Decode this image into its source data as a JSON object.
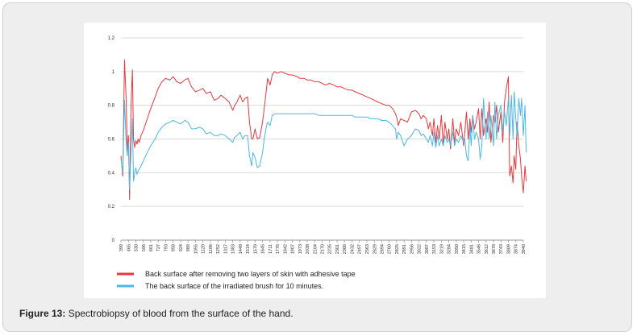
{
  "caption": {
    "label": "Figure 13:",
    "text": "Spectrobiopsy of blood from the surface of the hand."
  },
  "chart_data": {
    "type": "line",
    "title": "",
    "xlabel": "",
    "ylabel": "",
    "ylim": [
      0,
      1.2
    ],
    "yticks": [
      "0",
      "0.2",
      "0.4",
      "0.6",
      "0.8",
      "1",
      "1.2"
    ],
    "grid": true,
    "legend_position": "bottom",
    "x_tick_labels": [
      "399",
      "465",
      "530",
      "596",
      "661",
      "727",
      "793",
      "858",
      "924",
      "989",
      "1055",
      "1120",
      "1186",
      "1252",
      "1317",
      "1383",
      "1448",
      "1514",
      "1579",
      "1645",
      "1711",
      "1776",
      "1842",
      "1907",
      "1973",
      "2038",
      "2104",
      "2170",
      "2235",
      "2301",
      "2366",
      "2432",
      "2497",
      "2563",
      "2629",
      "2694",
      "2760",
      "2825",
      "2891",
      "2956",
      "3022",
      "3087",
      "3153",
      "3219",
      "3284",
      "3350",
      "3415",
      "3481",
      "3546",
      "3612",
      "3678",
      "3743",
      "3809",
      "3874",
      "3940"
    ],
    "series": [
      {
        "name": "Back surface after removing two layers of skin with adhesive tape",
        "color": "#e8383d",
        "x": [
          399,
          415,
          430,
          445,
          455,
          465,
          475,
          488,
          500,
          510,
          520,
          530,
          540,
          550,
          560,
          575,
          596,
          630,
          661,
          700,
          727,
          760,
          793,
          830,
          858,
          890,
          924,
          960,
          989,
          1020,
          1055,
          1090,
          1120,
          1150,
          1186,
          1220,
          1252,
          1280,
          1317,
          1350,
          1383,
          1400,
          1420,
          1448,
          1470,
          1490,
          1514,
          1530,
          1550,
          1560,
          1579,
          1600,
          1620,
          1645,
          1660,
          1680,
          1690,
          1711,
          1730,
          1750,
          1776,
          1810,
          1842,
          1880,
          1907,
          1950,
          1973,
          2010,
          2038,
          2070,
          2104,
          2140,
          2170,
          2200,
          2235,
          2270,
          2301,
          2335,
          2366,
          2400,
          2432,
          2460,
          2497,
          2530,
          2563,
          2600,
          2629,
          2660,
          2694,
          2730,
          2760,
          2790,
          2815,
          2825,
          2840,
          2860,
          2891,
          2920,
          2956,
          2990,
          3022,
          3040,
          3060,
          3087,
          3105,
          3120,
          3140,
          3153,
          3170,
          3185,
          3200,
          3219,
          3235,
          3250,
          3270,
          3284,
          3300,
          3320,
          3335,
          3350,
          3370,
          3390,
          3415,
          3425,
          3440,
          3455,
          3470,
          3481,
          3495,
          3510,
          3525,
          3546,
          3560,
          3575,
          3590,
          3612,
          3625,
          3640,
          3655,
          3678,
          3690,
          3705,
          3720,
          3743,
          3760,
          3775,
          3790,
          3809,
          3820,
          3835,
          3850,
          3860,
          3874,
          3885,
          3900,
          3915,
          3925,
          3940,
          3955,
          3965
        ],
        "values": [
          0.5,
          0.38,
          1.07,
          0.83,
          0.52,
          0.62,
          0.24,
          0.8,
          1.01,
          0.6,
          0.55,
          0.59,
          0.57,
          0.6,
          0.58,
          0.62,
          0.65,
          0.72,
          0.78,
          0.85,
          0.9,
          0.94,
          0.96,
          0.95,
          0.97,
          0.94,
          0.93,
          0.95,
          0.96,
          0.91,
          0.88,
          0.89,
          0.9,
          0.87,
          0.88,
          0.83,
          0.84,
          0.86,
          0.84,
          0.82,
          0.77,
          0.8,
          0.82,
          0.86,
          0.82,
          0.84,
          0.85,
          0.7,
          0.6,
          0.6,
          0.66,
          0.6,
          0.61,
          0.7,
          0.78,
          0.9,
          0.96,
          0.92,
          0.98,
          1.0,
          0.99,
          1.0,
          0.99,
          0.98,
          0.98,
          0.97,
          0.96,
          0.96,
          0.95,
          0.95,
          0.94,
          0.94,
          0.93,
          0.92,
          0.93,
          0.92,
          0.91,
          0.91,
          0.9,
          0.89,
          0.89,
          0.88,
          0.87,
          0.86,
          0.85,
          0.84,
          0.83,
          0.82,
          0.81,
          0.8,
          0.8,
          0.78,
          0.75,
          0.73,
          0.68,
          0.72,
          0.71,
          0.7,
          0.76,
          0.77,
          0.75,
          0.72,
          0.74,
          0.72,
          0.66,
          0.7,
          0.62,
          0.72,
          0.58,
          0.68,
          0.6,
          0.74,
          0.56,
          0.7,
          0.6,
          0.66,
          0.54,
          0.72,
          0.58,
          0.66,
          0.62,
          0.7,
          0.56,
          0.64,
          0.76,
          0.6,
          0.72,
          0.64,
          0.74,
          0.66,
          0.7,
          0.78,
          0.6,
          0.78,
          0.62,
          0.72,
          0.64,
          0.82,
          0.58,
          0.74,
          0.7,
          0.8,
          0.64,
          0.76,
          0.58,
          0.82,
          0.9,
          0.97,
          0.38,
          0.44,
          0.34,
          0.5,
          0.42,
          0.7,
          0.56,
          0.48,
          0.38,
          0.28,
          0.44,
          0.35
        ]
      },
      {
        "name": "The back surface of the irradiated brush for 10 minutes.",
        "color": "#4bb8e5",
        "x": [
          399,
          415,
          430,
          445,
          455,
          465,
          475,
          488,
          500,
          510,
          520,
          530,
          540,
          550,
          560,
          575,
          596,
          630,
          661,
          700,
          727,
          760,
          793,
          830,
          858,
          890,
          924,
          960,
          989,
          1020,
          1055,
          1090,
          1120,
          1150,
          1186,
          1220,
          1252,
          1280,
          1317,
          1350,
          1383,
          1400,
          1420,
          1448,
          1470,
          1490,
          1514,
          1530,
          1550,
          1560,
          1579,
          1600,
          1620,
          1645,
          1660,
          1680,
          1690,
          1711,
          1730,
          1750,
          1776,
          1810,
          1842,
          1880,
          1907,
          1950,
          1973,
          2010,
          2038,
          2070,
          2104,
          2140,
          2170,
          2200,
          2235,
          2270,
          2301,
          2335,
          2366,
          2400,
          2432,
          2460,
          2497,
          2530,
          2563,
          2600,
          2629,
          2660,
          2694,
          2730,
          2760,
          2790,
          2815,
          2825,
          2840,
          2860,
          2891,
          2920,
          2956,
          2990,
          3022,
          3040,
          3060,
          3087,
          3105,
          3120,
          3140,
          3153,
          3170,
          3185,
          3200,
          3219,
          3235,
          3250,
          3270,
          3284,
          3300,
          3320,
          3335,
          3350,
          3370,
          3390,
          3415,
          3425,
          3440,
          3455,
          3470,
          3481,
          3495,
          3510,
          3525,
          3546,
          3560,
          3575,
          3590,
          3612,
          3625,
          3640,
          3655,
          3678,
          3690,
          3705,
          3720,
          3743,
          3760,
          3775,
          3790,
          3809,
          3820,
          3835,
          3850,
          3860,
          3874,
          3885,
          3900,
          3915,
          3925,
          3940,
          3955,
          3965
        ],
        "values": [
          0.48,
          0.4,
          0.83,
          0.58,
          0.5,
          0.58,
          0.3,
          0.54,
          0.72,
          0.35,
          0.4,
          0.43,
          0.39,
          0.41,
          0.42,
          0.44,
          0.47,
          0.52,
          0.56,
          0.6,
          0.64,
          0.67,
          0.69,
          0.7,
          0.71,
          0.7,
          0.69,
          0.71,
          0.7,
          0.66,
          0.66,
          0.67,
          0.66,
          0.63,
          0.64,
          0.62,
          0.62,
          0.63,
          0.62,
          0.6,
          0.58,
          0.61,
          0.62,
          0.64,
          0.6,
          0.62,
          0.62,
          0.5,
          0.44,
          0.52,
          0.49,
          0.43,
          0.44,
          0.52,
          0.6,
          0.68,
          0.7,
          0.68,
          0.74,
          0.75,
          0.75,
          0.75,
          0.75,
          0.75,
          0.75,
          0.75,
          0.75,
          0.75,
          0.75,
          0.75,
          0.75,
          0.74,
          0.74,
          0.74,
          0.74,
          0.74,
          0.74,
          0.74,
          0.74,
          0.74,
          0.74,
          0.73,
          0.73,
          0.73,
          0.73,
          0.72,
          0.72,
          0.72,
          0.71,
          0.71,
          0.7,
          0.68,
          0.66,
          0.6,
          0.64,
          0.62,
          0.56,
          0.6,
          0.62,
          0.66,
          0.65,
          0.62,
          0.63,
          0.6,
          0.58,
          0.62,
          0.56,
          0.64,
          0.55,
          0.62,
          0.56,
          0.6,
          0.56,
          0.62,
          0.58,
          0.6,
          0.56,
          0.64,
          0.56,
          0.6,
          0.58,
          0.62,
          0.58,
          0.6,
          0.5,
          0.47,
          0.68,
          0.56,
          0.74,
          0.6,
          0.64,
          0.6,
          0.48,
          0.56,
          0.84,
          0.6,
          0.76,
          0.6,
          0.74,
          0.56,
          0.82,
          0.6,
          0.74,
          0.8,
          0.64,
          0.76,
          0.68,
          0.84,
          0.62,
          0.86,
          0.6,
          0.88,
          0.72,
          0.62,
          0.84,
          0.74,
          0.84,
          0.62,
          0.8,
          0.52
        ]
      }
    ]
  }
}
